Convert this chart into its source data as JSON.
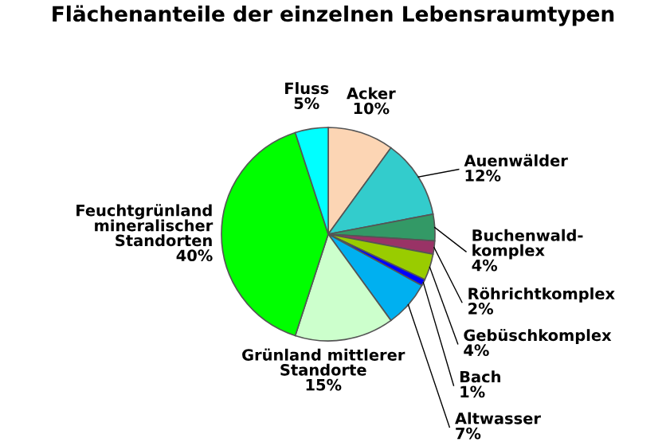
{
  "chart_data": {
    "type": "pie",
    "title": "Flächenanteile der einzelnen Lebensraumtypen",
    "categories": [
      "Acker",
      "Auenwälder",
      "Buchenwald-\nkomplex",
      "Röhrichtkomplex",
      "Gebüschkomplex",
      "Bach",
      "Altwasser",
      "Grünland mittlerer\nStandorte",
      "Feuchtgrünland\nmineralischer\nStandorten",
      "Fluss"
    ],
    "values": [
      10,
      12,
      4,
      2,
      4,
      1,
      7,
      15,
      40,
      5
    ],
    "colors": [
      "#fcd5b4",
      "#33cccc",
      "#339966",
      "#993366",
      "#99cc00",
      "#0000ff",
      "#00b0f0",
      "#ccffcc",
      "#00ff00",
      "#00ffff"
    ],
    "value_labels": [
      "10%",
      "12%",
      "4%",
      "2%",
      "4%",
      "1%",
      "7%",
      "15%",
      "40%",
      "5%"
    ],
    "legend": false
  }
}
